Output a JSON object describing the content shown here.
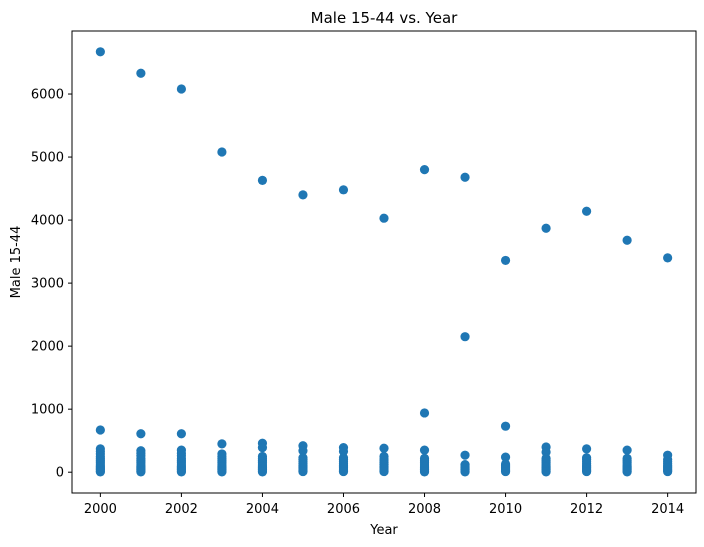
{
  "chart_data": {
    "type": "scatter",
    "title": "Male 15-44 vs. Year",
    "xlabel": "Year",
    "ylabel": "Male 15-44",
    "xlim": [
      1999.3,
      2014.7
    ],
    "ylim": [
      -330,
      7000
    ],
    "xticks": [
      2000,
      2002,
      2004,
      2006,
      2008,
      2010,
      2012,
      2014
    ],
    "yticks": [
      0,
      1000,
      2000,
      3000,
      4000,
      5000,
      6000
    ],
    "grid": false,
    "marker_color": "#1f77b4",
    "series": [
      {
        "points": [
          [
            2000,
            6670
          ],
          [
            2000,
            670
          ],
          [
            2000,
            370
          ],
          [
            2000,
            330
          ],
          [
            2000,
            290
          ],
          [
            2000,
            250
          ],
          [
            2000,
            220
          ],
          [
            2000,
            190
          ],
          [
            2000,
            160
          ],
          [
            2000,
            130
          ],
          [
            2000,
            100
          ],
          [
            2000,
            80
          ],
          [
            2000,
            60
          ],
          [
            2000,
            40
          ],
          [
            2000,
            20
          ],
          [
            2000,
            5
          ],
          [
            2001,
            6330
          ],
          [
            2001,
            610
          ],
          [
            2001,
            340
          ],
          [
            2001,
            300
          ],
          [
            2001,
            260
          ],
          [
            2001,
            220
          ],
          [
            2001,
            190
          ],
          [
            2001,
            160
          ],
          [
            2001,
            130
          ],
          [
            2001,
            100
          ],
          [
            2001,
            80
          ],
          [
            2001,
            60
          ],
          [
            2001,
            40
          ],
          [
            2001,
            20
          ],
          [
            2001,
            5
          ],
          [
            2002,
            6080
          ],
          [
            2002,
            610
          ],
          [
            2002,
            350
          ],
          [
            2002,
            300
          ],
          [
            2002,
            260
          ],
          [
            2002,
            220
          ],
          [
            2002,
            190
          ],
          [
            2002,
            160
          ],
          [
            2002,
            130
          ],
          [
            2002,
            100
          ],
          [
            2002,
            80
          ],
          [
            2002,
            60
          ],
          [
            2002,
            40
          ],
          [
            2002,
            20
          ],
          [
            2002,
            5
          ],
          [
            2003,
            5080
          ],
          [
            2003,
            450
          ],
          [
            2003,
            290
          ],
          [
            2003,
            250
          ],
          [
            2003,
            220
          ],
          [
            2003,
            190
          ],
          [
            2003,
            160
          ],
          [
            2003,
            130
          ],
          [
            2003,
            100
          ],
          [
            2003,
            80
          ],
          [
            2003,
            60
          ],
          [
            2003,
            40
          ],
          [
            2003,
            20
          ],
          [
            2003,
            5
          ],
          [
            2004,
            4630
          ],
          [
            2004,
            460
          ],
          [
            2004,
            390
          ],
          [
            2004,
            250
          ],
          [
            2004,
            220
          ],
          [
            2004,
            190
          ],
          [
            2004,
            160
          ],
          [
            2004,
            130
          ],
          [
            2004,
            100
          ],
          [
            2004,
            80
          ],
          [
            2004,
            60
          ],
          [
            2004,
            40
          ],
          [
            2004,
            20
          ],
          [
            2004,
            5
          ],
          [
            2005,
            4400
          ],
          [
            2005,
            420
          ],
          [
            2005,
            340
          ],
          [
            2005,
            230
          ],
          [
            2005,
            200
          ],
          [
            2005,
            170
          ],
          [
            2005,
            140
          ],
          [
            2005,
            110
          ],
          [
            2005,
            90
          ],
          [
            2005,
            70
          ],
          [
            2005,
            50
          ],
          [
            2005,
            30
          ],
          [
            2005,
            10
          ],
          [
            2006,
            4480
          ],
          [
            2006,
            390
          ],
          [
            2006,
            330
          ],
          [
            2006,
            230
          ],
          [
            2006,
            200
          ],
          [
            2006,
            170
          ],
          [
            2006,
            140
          ],
          [
            2006,
            110
          ],
          [
            2006,
            90
          ],
          [
            2006,
            70
          ],
          [
            2006,
            50
          ],
          [
            2006,
            30
          ],
          [
            2006,
            10
          ],
          [
            2007,
            4030
          ],
          [
            2007,
            380
          ],
          [
            2007,
            250
          ],
          [
            2007,
            210
          ],
          [
            2007,
            180
          ],
          [
            2007,
            150
          ],
          [
            2007,
            120
          ],
          [
            2007,
            95
          ],
          [
            2007,
            70
          ],
          [
            2007,
            50
          ],
          [
            2007,
            30
          ],
          [
            2007,
            10
          ],
          [
            2008,
            4800
          ],
          [
            2008,
            940
          ],
          [
            2008,
            350
          ],
          [
            2008,
            220
          ],
          [
            2008,
            190
          ],
          [
            2008,
            160
          ],
          [
            2008,
            130
          ],
          [
            2008,
            100
          ],
          [
            2008,
            80
          ],
          [
            2008,
            60
          ],
          [
            2008,
            40
          ],
          [
            2008,
            20
          ],
          [
            2008,
            5
          ],
          [
            2009,
            4680
          ],
          [
            2009,
            2150
          ],
          [
            2009,
            270
          ],
          [
            2009,
            120
          ],
          [
            2009,
            100
          ],
          [
            2009,
            80
          ],
          [
            2009,
            60
          ],
          [
            2009,
            40
          ],
          [
            2009,
            20
          ],
          [
            2009,
            5
          ],
          [
            2010,
            3360
          ],
          [
            2010,
            730
          ],
          [
            2010,
            240
          ],
          [
            2010,
            130
          ],
          [
            2010,
            110
          ],
          [
            2010,
            90
          ],
          [
            2010,
            70
          ],
          [
            2010,
            50
          ],
          [
            2010,
            30
          ],
          [
            2010,
            10
          ],
          [
            2011,
            3870
          ],
          [
            2011,
            400
          ],
          [
            2011,
            320
          ],
          [
            2011,
            220
          ],
          [
            2011,
            190
          ],
          [
            2011,
            160
          ],
          [
            2011,
            130
          ],
          [
            2011,
            100
          ],
          [
            2011,
            80
          ],
          [
            2011,
            60
          ],
          [
            2011,
            40
          ],
          [
            2011,
            20
          ],
          [
            2011,
            5
          ],
          [
            2012,
            4140
          ],
          [
            2012,
            370
          ],
          [
            2012,
            230
          ],
          [
            2012,
            200
          ],
          [
            2012,
            170
          ],
          [
            2012,
            140
          ],
          [
            2012,
            110
          ],
          [
            2012,
            90
          ],
          [
            2012,
            70
          ],
          [
            2012,
            50
          ],
          [
            2012,
            30
          ],
          [
            2012,
            10
          ],
          [
            2013,
            3680
          ],
          [
            2013,
            350
          ],
          [
            2013,
            220
          ],
          [
            2013,
            190
          ],
          [
            2013,
            160
          ],
          [
            2013,
            130
          ],
          [
            2013,
            100
          ],
          [
            2013,
            80
          ],
          [
            2013,
            60
          ],
          [
            2013,
            40
          ],
          [
            2013,
            20
          ],
          [
            2013,
            5
          ],
          [
            2014,
            3400
          ],
          [
            2014,
            270
          ],
          [
            2014,
            200
          ],
          [
            2014,
            170
          ],
          [
            2014,
            140
          ],
          [
            2014,
            110
          ],
          [
            2014,
            90
          ],
          [
            2014,
            70
          ],
          [
            2014,
            50
          ],
          [
            2014,
            30
          ],
          [
            2014,
            10
          ]
        ]
      }
    ]
  }
}
